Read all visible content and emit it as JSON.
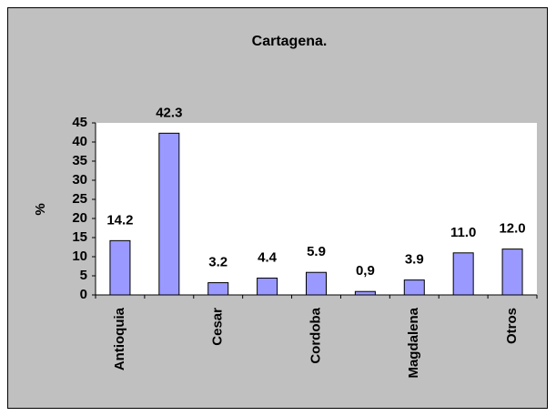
{
  "chart_data": {
    "type": "bar",
    "title": "Cartagena.",
    "categories": [
      "Antioquia",
      null,
      "Cesar",
      null,
      "Cordoba",
      null,
      "Magdalena",
      null,
      "Otros"
    ],
    "values": [
      14.2,
      42.3,
      3.2,
      4.4,
      5.9,
      0.9,
      3.9,
      11.0,
      12.0
    ],
    "value_labels": [
      "14.2",
      "42.3",
      "3.2",
      "4.4",
      "5.9",
      "0,9",
      "3.9",
      "11.0",
      "12.0"
    ],
    "y_label": "%",
    "color": "#9999ff",
    "ylim": [
      0,
      45
    ],
    "yticks": [
      0,
      5,
      10,
      15,
      20,
      25,
      30,
      35,
      40,
      45
    ],
    "grid": false
  }
}
